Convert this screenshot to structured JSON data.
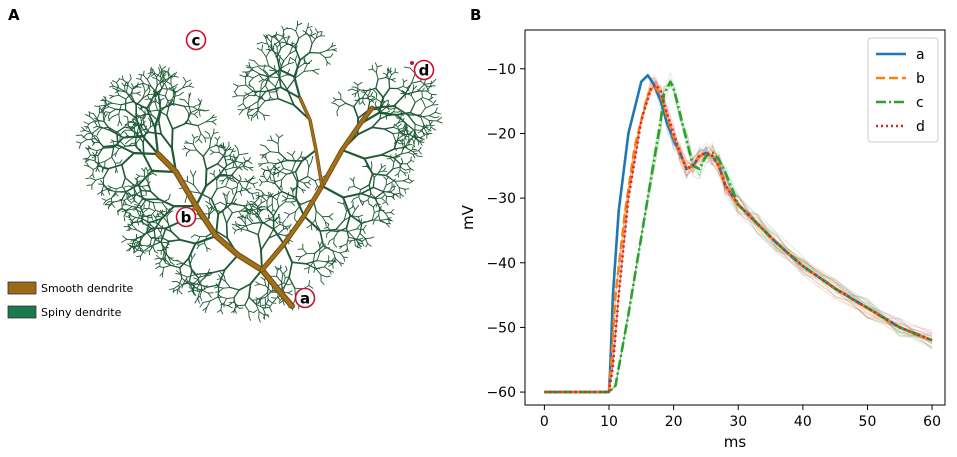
{
  "panels": {
    "a": "A",
    "b": "B"
  },
  "neuron": {
    "points": [
      "a",
      "b",
      "c",
      "d"
    ],
    "legend": [
      {
        "label": "Smooth dendrite",
        "color": "#9a6a16"
      },
      {
        "label": "Spiny dendrite",
        "color": "#1a7a4c"
      }
    ],
    "spiny_color": "#1f5a36",
    "smooth_color": "#a0701c",
    "marker_color": "#c8102e"
  },
  "chart_data": {
    "type": "line",
    "xlabel": "ms",
    "ylabel": "mV",
    "xlim": [
      -3,
      62
    ],
    "ylim": [
      -62,
      -4
    ],
    "xticks": [
      0,
      10,
      20,
      30,
      40,
      50,
      60
    ],
    "yticks": [
      -60,
      -50,
      -40,
      -30,
      -20,
      -10
    ],
    "legend_position": "top-right",
    "series": [
      {
        "name": "a",
        "color": "#1f77b4",
        "dash": "solid",
        "x": [
          0,
          10,
          10.2,
          10.6,
          11.5,
          13,
          15,
          16,
          17,
          18,
          19,
          20,
          21,
          22,
          23,
          24,
          25,
          26,
          27,
          28,
          30,
          33,
          36,
          40,
          45,
          50,
          55,
          60
        ],
        "y": [
          -60,
          -60,
          -56,
          -45,
          -32,
          -20,
          -12,
          -11,
          -12.5,
          -15,
          -18.5,
          -21,
          -23,
          -25.5,
          -25,
          -23.5,
          -23,
          -23.5,
          -25,
          -28,
          -31,
          -34,
          -37,
          -40.5,
          -44,
          -47,
          -50,
          -52
        ]
      },
      {
        "name": "b",
        "color": "#ff7f0e",
        "dash": "dashed",
        "x": [
          0,
          10,
          10.4,
          11,
          12.5,
          14,
          16,
          17,
          18,
          19,
          20,
          21,
          22,
          23,
          24,
          25,
          26,
          27,
          28,
          30,
          33,
          36,
          40,
          45,
          50,
          55,
          60
        ],
        "y": [
          -60,
          -60,
          -55,
          -45,
          -32,
          -22,
          -14,
          -12.5,
          -14,
          -17.5,
          -20.5,
          -23,
          -25.5,
          -25,
          -23.5,
          -23,
          -23.5,
          -25,
          -28,
          -31,
          -34,
          -37,
          -40.5,
          -44,
          -47,
          -50,
          -52
        ]
      },
      {
        "name": "c",
        "color": "#2ca02c",
        "dash": "dashdot",
        "x": [
          0,
          10,
          11,
          13,
          15,
          17,
          18,
          18.5,
          19.5,
          20,
          21,
          22,
          23,
          24,
          25,
          26,
          27,
          28,
          29,
          30,
          33,
          36,
          40,
          45,
          50,
          55,
          60
        ],
        "y": [
          -60,
          -60,
          -59,
          -48,
          -36,
          -24,
          -18,
          -14,
          -12,
          -13,
          -17,
          -21,
          -25,
          -25.5,
          -23.5,
          -23,
          -24,
          -26,
          -28.5,
          -31,
          -34,
          -37,
          -40.5,
          -44,
          -47,
          -50,
          -52
        ]
      },
      {
        "name": "d",
        "color": "#d62728",
        "dash": "dotted",
        "x": [
          0,
          10,
          10.6,
          11.5,
          13,
          15,
          16.5,
          17.3,
          18,
          19,
          20,
          21,
          22,
          23,
          24,
          25,
          26,
          27,
          28,
          30,
          33,
          36,
          40,
          45,
          50,
          55,
          60
        ],
        "y": [
          -60,
          -60,
          -56,
          -45,
          -30,
          -18,
          -13,
          -12.5,
          -13.5,
          -17,
          -20,
          -23,
          -25.5,
          -25,
          -23.5,
          -23,
          -23.5,
          -25,
          -28,
          -31,
          -34,
          -37,
          -40.5,
          -44,
          -47,
          -50,
          -52
        ]
      }
    ]
  }
}
